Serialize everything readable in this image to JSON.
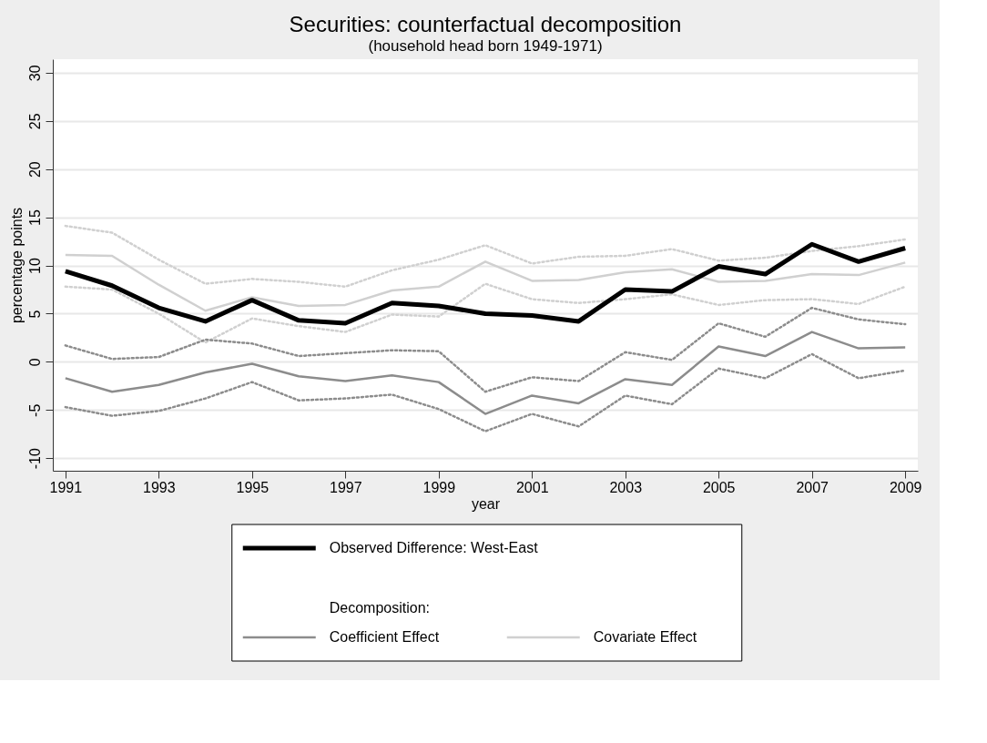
{
  "chart_data": {
    "type": "line",
    "title": "Securities: counterfactual decomposition",
    "subtitle": "(household head born 1949-1971)",
    "xlabel": "year",
    "ylabel": "percentage points",
    "x": [
      1991,
      1992,
      1993,
      1994,
      1995,
      1996,
      1997,
      1998,
      1999,
      2000,
      2001,
      2002,
      2003,
      2004,
      2005,
      2006,
      2007,
      2008,
      2009
    ],
    "series": [
      {
        "name": "Observed Difference: West-East",
        "color": "#000000",
        "line_style": "solid",
        "values": [
          9.4,
          7.9,
          5.6,
          4.2,
          6.4,
          4.3,
          4.0,
          6.1,
          5.8,
          5.0,
          4.8,
          4.2,
          7.5,
          7.3,
          9.9,
          9.1,
          12.2,
          10.4,
          11.8
        ]
      },
      {
        "name": "Coefficient Effect",
        "color": "#8c8c8c",
        "line_style": "solid",
        "values": [
          -1.7,
          -3.1,
          -2.4,
          -1.1,
          -0.2,
          -1.5,
          -2.0,
          -1.4,
          -2.1,
          -5.4,
          -3.5,
          -4.3,
          -1.8,
          -2.4,
          1.6,
          0.6,
          3.1,
          1.4,
          1.5
        ]
      },
      {
        "name": "Covariate Effect",
        "color": "#d0d0d0",
        "line_style": "solid",
        "values": [
          11.1,
          11.0,
          8.0,
          5.3,
          6.7,
          5.8,
          5.9,
          7.4,
          7.8,
          10.4,
          8.4,
          8.5,
          9.3,
          9.6,
          8.3,
          8.4,
          9.1,
          9.0,
          10.3
        ]
      },
      {
        "color": "#8c8c8c",
        "line_style": "dotted",
        "values": [
          1.7,
          0.3,
          0.5,
          2.3,
          1.9,
          0.6,
          0.9,
          1.2,
          1.1,
          -3.1,
          -1.6,
          -2.0,
          1.0,
          0.2,
          4.0,
          2.6,
          5.6,
          4.4,
          3.9
        ]
      },
      {
        "color": "#8c8c8c",
        "line_style": "dotted",
        "values": [
          -4.7,
          -5.6,
          -5.1,
          -3.8,
          -2.1,
          -4.0,
          -3.8,
          -3.4,
          -4.9,
          -7.2,
          -5.4,
          -6.7,
          -3.5,
          -4.4,
          -0.7,
          -1.7,
          0.8,
          -1.7,
          -0.9
        ]
      },
      {
        "color": "#d0d0d0",
        "line_style": "dotted",
        "values": [
          14.1,
          13.4,
          10.6,
          8.1,
          8.6,
          8.3,
          7.8,
          9.5,
          10.6,
          12.1,
          10.2,
          10.9,
          11.0,
          11.7,
          10.5,
          10.8,
          11.5,
          12.0,
          12.7
        ]
      },
      {
        "color": "#d0d0d0",
        "line_style": "dotted",
        "values": [
          7.8,
          7.5,
          5.0,
          2.0,
          4.5,
          3.7,
          3.1,
          4.9,
          4.7,
          8.1,
          6.5,
          6.1,
          6.5,
          7.0,
          5.9,
          6.4,
          6.5,
          6.0,
          7.8
        ]
      }
    ],
    "xlim": [
      1990.73,
      2009.27
    ],
    "ylim": [
      -11.3,
      31.4
    ],
    "xticks": [
      1991,
      1993,
      1995,
      1997,
      1999,
      2001,
      2003,
      2005,
      2007,
      2009
    ],
    "yticks": [
      -10,
      -5,
      0,
      5,
      10,
      15,
      20,
      25,
      30
    ],
    "grid": "y",
    "legend": "bottom",
    "marker": "none",
    "annotations": [
      "Decomposition:"
    ]
  }
}
